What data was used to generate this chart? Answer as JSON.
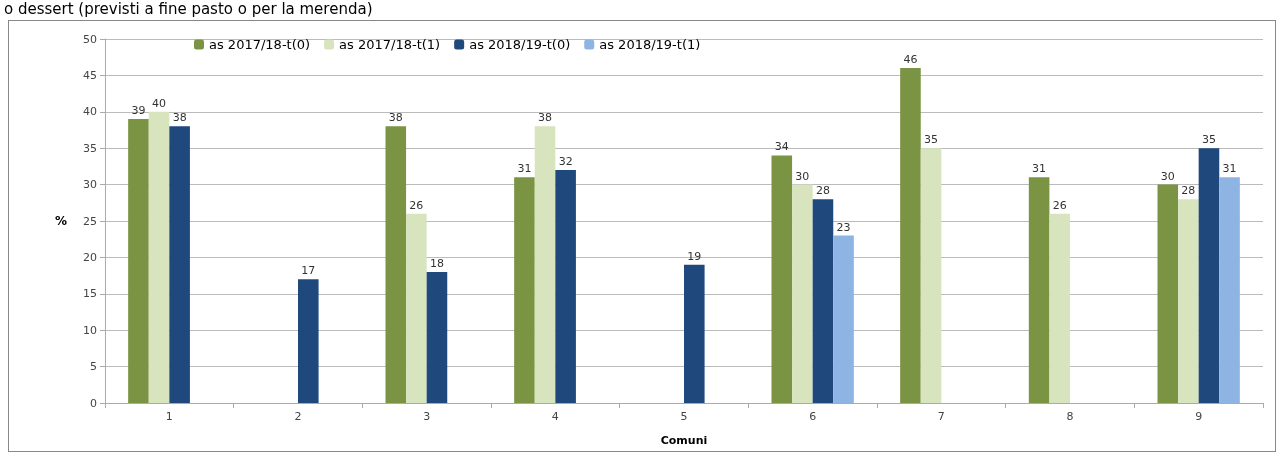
{
  "chart_data": {
    "type": "bar",
    "title": "o dessert (previsti a fine pasto o per la merenda)",
    "xlabel": "Comuni",
    "ylabel": "%",
    "categories": [
      "1",
      "2",
      "3",
      "4",
      "5",
      "6",
      "7",
      "8",
      "9"
    ],
    "series": [
      {
        "name": "as 2017/18-t(0)",
        "color": "#7a9443",
        "values": [
          39,
          null,
          38,
          31,
          null,
          34,
          46,
          31,
          30
        ]
      },
      {
        "name": "as 2017/18-t(1)",
        "color": "#d7e4bd",
        "values": [
          40,
          null,
          26,
          38,
          null,
          30,
          35,
          26,
          28
        ]
      },
      {
        "name": "as 2018/19-t(0)",
        "color": "#1f497d",
        "values": [
          38,
          17,
          18,
          32,
          19,
          28,
          null,
          null,
          35
        ]
      },
      {
        "name": "as 2018/19-t(1)",
        "color": "#8eb4e3",
        "values": [
          null,
          null,
          null,
          null,
          null,
          23,
          null,
          null,
          31
        ]
      }
    ],
    "ylim": [
      0,
      50
    ],
    "yticks": [
      0,
      5,
      10,
      15,
      20,
      25,
      30,
      35,
      40,
      45,
      50
    ],
    "grid": "y",
    "legend": "top",
    "data_labels": true
  }
}
